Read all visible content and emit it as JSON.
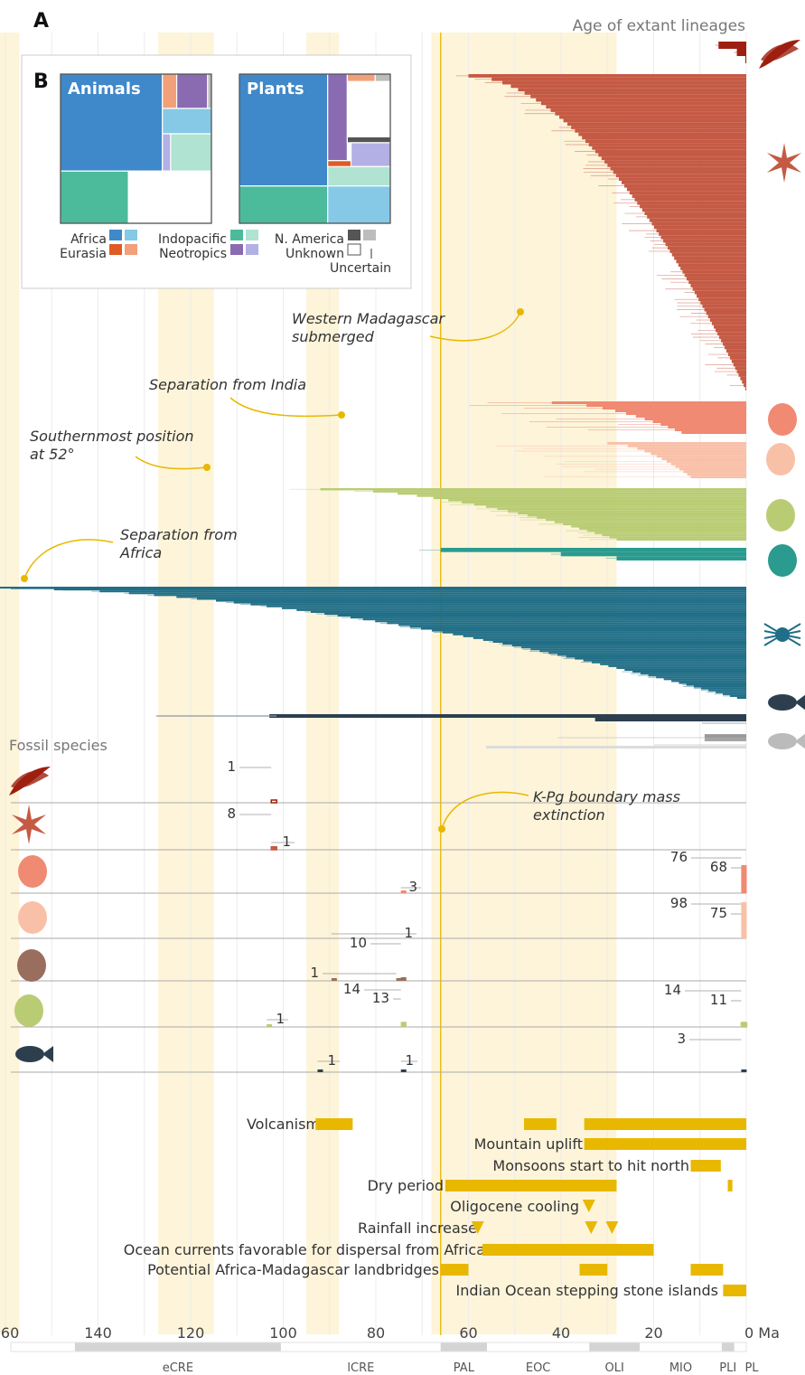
{
  "panel_letters": {
    "a": "A",
    "b": "B"
  },
  "chart_data": [
    {
      "type": "bar",
      "title": "Age of extant lineages",
      "xlabel": "Ma",
      "xlim": [
        168,
        0
      ],
      "x_ticks": [
        "160",
        "140",
        "120",
        "100",
        "80",
        "60",
        "40",
        "20",
        "0 Ma"
      ],
      "periods": [
        "eCRE",
        "lCRE",
        "PAL",
        "EOC",
        "OLI",
        "MIO",
        "PLI",
        "PL"
      ],
      "highlight_windows_ma": [
        [
          167,
          157
        ],
        [
          127,
          115
        ],
        [
          95,
          88
        ],
        [
          68,
          28
        ]
      ],
      "kpg_boundary_ma": 66,
      "series": [
        {
          "group": "ferns",
          "color": "#9e1f0f",
          "bars": 3,
          "crown_ma": [
            6,
            0.2
          ],
          "stem_ma": [
            7,
            1
          ]
        },
        {
          "group": "plants",
          "color": "#c55a44",
          "bars": 92,
          "crown_ma": [
            60,
            0.2
          ],
          "stem_ma": [
            68,
            1
          ]
        },
        {
          "group": "primates",
          "color": "#f08a72",
          "bars": 12,
          "crown_ma": [
            42,
            14
          ],
          "stem_ma": [
            75,
            20
          ]
        },
        {
          "group": "birds",
          "color": "#f9c0a8",
          "bars": 14,
          "crown_ma": [
            30,
            12
          ],
          "stem_ma": [
            70,
            15
          ]
        },
        {
          "group": "reptiles",
          "color": "#b9cc74",
          "bars": 24,
          "crown_ma": [
            92,
            28
          ],
          "stem_ma": [
            100,
            60
          ]
        },
        {
          "group": "amphibians",
          "color": "#2a9b8e",
          "bars": 3,
          "crown_ma": [
            66,
            28
          ],
          "stem_ma": [
            72,
            60
          ]
        },
        {
          "group": "invertebrates",
          "color": "#206e87",
          "bars": 60,
          "crown_ma": [
            165,
            2
          ],
          "stem_ma": [
            168,
            45
          ]
        },
        {
          "group": "fish",
          "color": "#2d3f4f",
          "bars": 3,
          "crown_ma": [
            103,
            0
          ],
          "stem_ma": [
            129,
            15
          ]
        },
        {
          "group": "mammals-marine",
          "color": "#a5a5a5",
          "bars": 2,
          "crown_ma": [
            9,
            0
          ],
          "stem_ma": [
            57,
            0
          ]
        }
      ]
    },
    {
      "type": "bar",
      "title": "Fossil species",
      "rows": [
        {
          "group": "ferns",
          "color": "#9e1f0f",
          "counts": [
            {
              "label": "1",
              "ma": 102
            }
          ]
        },
        {
          "group": "plants",
          "color": "#c55a44",
          "counts": [
            {
              "label": "8",
              "ma": 102
            },
            {
              "label": "1",
              "ma": 102
            }
          ]
        },
        {
          "group": "primates",
          "color": "#f08a72",
          "counts": [
            {
              "label": "3",
              "ma": 74
            },
            {
              "label": "76",
              "ma": 0.5
            },
            {
              "label": "68",
              "ma": 0.5
            }
          ]
        },
        {
          "group": "birds",
          "color": "#f9c0a8",
          "counts": [
            {
              "label": "98",
              "ma": 0.5
            },
            {
              "label": "75",
              "ma": 0.5
            }
          ]
        },
        {
          "group": "dinosaurs",
          "color": "#9a6e5e",
          "counts": [
            {
              "label": "1",
              "ma": 75
            },
            {
              "label": "10",
              "ma": 74
            },
            {
              "label": "1",
              "ma": 89
            }
          ]
        },
        {
          "group": "reptiles",
          "color": "#b9cc74",
          "counts": [
            {
              "label": "14",
              "ma": 74
            },
            {
              "label": "13",
              "ma": 74
            },
            {
              "label": "1",
              "ma": 103
            },
            {
              "label": "14",
              "ma": 0.5
            },
            {
              "label": "11",
              "ma": 0.5
            }
          ]
        },
        {
          "group": "fish",
          "color": "#2d3f4f",
          "counts": [
            {
              "label": "1",
              "ma": 92
            },
            {
              "label": "1",
              "ma": 74
            },
            {
              "label": "3",
              "ma": 0.5
            }
          ]
        }
      ]
    },
    {
      "type": "table",
      "events": [
        {
          "label": "Volcanism",
          "spans_ma": [
            [
              93,
              85
            ],
            [
              48,
              41
            ],
            [
              35,
              0
            ]
          ]
        },
        {
          "label": "Mountain uplift",
          "spans_ma": [
            [
              35,
              0
            ]
          ]
        },
        {
          "label": "Monsoons start to hit north",
          "spans_ma": [
            [
              12,
              5.5
            ]
          ]
        },
        {
          "label": "Dry period",
          "spans_ma": [
            [
              65,
              28
            ],
            [
              4,
              3
            ]
          ]
        },
        {
          "label": "Oligocene cooling",
          "markers_ma": [
            34
          ]
        },
        {
          "label": "Rainfall increase",
          "markers_ma": [
            58,
            33.5,
            29
          ]
        },
        {
          "label": "Ocean currents favorable for dispersal from Africa",
          "spans_ma": [
            [
              57,
              20
            ]
          ]
        },
        {
          "label": "Potential Africa-Madagascar landbridges",
          "spans_ma": [
            [
              66,
              60
            ],
            [
              36,
              30
            ],
            [
              12,
              5
            ]
          ]
        },
        {
          "label": "Indian Ocean stepping stone islands",
          "spans_ma": [
            [
              5,
              0
            ]
          ]
        }
      ]
    },
    {
      "type": "bar",
      "title": "Biogeographic origin",
      "panels": [
        {
          "name": "Animals",
          "cells": [
            {
              "region": "Africa",
              "color": "#3f88c9",
              "x0": 0,
              "y0": 0,
              "x1": 0.675,
              "y1": 0.65
            },
            {
              "region": "Eurasia (uncertain)",
              "color": "#f2a07a",
              "x0": 0.675,
              "y0": 0,
              "x1": 0.77,
              "y1": 0.23
            },
            {
              "region": "Neotropics",
              "color": "#8a6bb1",
              "x0": 0.77,
              "y0": 0,
              "x1": 0.975,
              "y1": 0.23
            },
            {
              "region": "N. America (uncertain)",
              "color": "#bdbdbd",
              "x0": 0.975,
              "y0": 0,
              "x1": 1,
              "y1": 0.23
            },
            {
              "region": "Africa (uncertain)",
              "color": "#85c9e6",
              "x0": 0.675,
              "y0": 0.23,
              "x1": 1,
              "y1": 0.4
            },
            {
              "region": "Neotropics (uncertain)",
              "color": "#b3b0e6",
              "x0": 0.675,
              "y0": 0.4,
              "x1": 0.73,
              "y1": 0.65
            },
            {
              "region": "Indopacific (uncertain)",
              "color": "#b0e3d2",
              "x0": 0.73,
              "y0": 0.4,
              "x1": 1,
              "y1": 0.65
            },
            {
              "region": "Indopacific",
              "color": "#4bbb9b",
              "x0": 0,
              "y0": 0.65,
              "x1": 0.45,
              "y1": 1
            },
            {
              "region": "Unknown",
              "color": "#ffffff",
              "x0": 0.45,
              "y0": 0.65,
              "x1": 1,
              "y1": 1
            }
          ]
        },
        {
          "name": "Plants",
          "cells": [
            {
              "region": "Africa",
              "color": "#3f88c9",
              "x0": 0,
              "y0": 0,
              "x1": 0.585,
              "y1": 0.75
            },
            {
              "region": "Neotropics",
              "color": "#8a6bb1",
              "x0": 0.585,
              "y0": 0,
              "x1": 0.715,
              "y1": 0.58
            },
            {
              "region": "Eurasia (uncertain)",
              "color": "#f2a07a",
              "x0": 0.715,
              "y0": 0,
              "x1": 0.9,
              "y1": 0.05
            },
            {
              "region": "N. America (uncertain)",
              "color": "#bdbdbd",
              "x0": 0.9,
              "y0": 0,
              "x1": 1,
              "y1": 0.05
            },
            {
              "region": "Unknown",
              "color": "#ffffff",
              "x0": 0.715,
              "y0": 0.05,
              "x1": 1,
              "y1": 0.42
            },
            {
              "region": "N. America",
              "color": "#555555",
              "x0": 0.715,
              "y0": 0.42,
              "x1": 1,
              "y1": 0.46
            },
            {
              "region": "Eurasia",
              "color": "#e05a24",
              "x0": 0.585,
              "y0": 0.58,
              "x1": 0.74,
              "y1": 0.75
            },
            {
              "region": "Neotropics (uncertain)",
              "color": "#b3b0e6",
              "x0": 0.74,
              "y0": 0.46,
              "x1": 1,
              "y1": 0.62
            },
            {
              "region": "Indopacific (uncertain)",
              "color": "#b0e3d2",
              "x0": 0.585,
              "y0": 0.62,
              "x1": 1,
              "y1": 0.85
            },
            {
              "region": "Indopacific",
              "color": "#4bbb9b",
              "x0": 0,
              "y0": 0.75,
              "x1": 0.585,
              "y1": 1
            },
            {
              "region": "Africa (uncertain)",
              "color": "#85c9e6",
              "x0": 0.585,
              "y0": 0.75,
              "x1": 1,
              "y1": 1
            }
          ]
        }
      ],
      "legend": [
        {
          "label": "Africa",
          "colors": [
            "#3f88c9",
            "#85c9e6"
          ]
        },
        {
          "label": "Eurasia",
          "colors": [
            "#e05a24",
            "#f2a07a"
          ]
        },
        {
          "label": "Indopacific",
          "colors": [
            "#4bbb9b",
            "#b0e3d2"
          ]
        },
        {
          "label": "Neotropics",
          "colors": [
            "#8a6bb1",
            "#b3b0e6"
          ]
        },
        {
          "label": "N. America",
          "colors": [
            "#555555",
            "#bdbdbd"
          ]
        },
        {
          "label": "Unknown",
          "colors": [
            "#ffffff"
          ]
        },
        {
          "label": "Uncertain",
          "colors": []
        }
      ]
    }
  ],
  "annotations": {
    "western": [
      "Western Madagascar",
      "submerged"
    ],
    "india": [
      "Separation from India"
    ],
    "southern": [
      "Southernmost position",
      "at 52°"
    ],
    "africa": [
      "Separation  from",
      "Africa"
    ],
    "kpg": [
      "K-Pg boundary mass",
      "extinction"
    ]
  },
  "icons": [
    "fern-icon",
    "flower-icon",
    "lemur-icon",
    "bird-icon",
    "chameleon-icon",
    "frog-icon",
    "spider-icon",
    "fish-icon",
    "dolphin-icon",
    "dinosaur-icon"
  ],
  "accent_color": "#e8b800"
}
